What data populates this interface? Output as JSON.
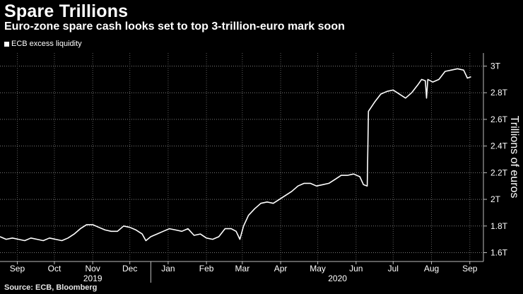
{
  "header": {
    "title": "Spare Trillions",
    "subtitle": "Euro-zone spare cash looks set to top 3-trillion-euro mark soon"
  },
  "source": "Source: ECB, Bloomberg",
  "chart_data": {
    "type": "line",
    "title": "Spare Trillions",
    "subtitle": "Euro-zone spare cash looks set to top 3-trillion-euro mark soon",
    "xlabel": "",
    "ylabel": "Trillions of euros",
    "ylim": [
      1.6,
      3.0
    ],
    "yticks": [
      {
        "value": 1.6,
        "label": "1.6T"
      },
      {
        "value": 1.8,
        "label": "1.8T"
      },
      {
        "value": 2.0,
        "label": "2T"
      },
      {
        "value": 2.2,
        "label": "2.2T"
      },
      {
        "value": 2.4,
        "label": "2.4T"
      },
      {
        "value": 2.6,
        "label": "2.6T"
      },
      {
        "value": 2.8,
        "label": "2.8T"
      },
      {
        "value": 3.0,
        "label": "3T"
      }
    ],
    "x_range": [
      "2019-09-01",
      "2020-09-26"
    ],
    "month_ticks": [
      {
        "date": "2019-09-15",
        "label": "Sep"
      },
      {
        "date": "2019-10-15",
        "label": "Oct"
      },
      {
        "date": "2019-11-15",
        "label": "Nov"
      },
      {
        "date": "2019-12-15",
        "label": "Dec"
      },
      {
        "date": "2020-01-15",
        "label": "Jan"
      },
      {
        "date": "2020-02-15",
        "label": "Feb"
      },
      {
        "date": "2020-03-15",
        "label": "Mar"
      },
      {
        "date": "2020-04-15",
        "label": "Apr"
      },
      {
        "date": "2020-05-15",
        "label": "May"
      },
      {
        "date": "2020-06-15",
        "label": "Jun"
      },
      {
        "date": "2020-07-15",
        "label": "Jul"
      },
      {
        "date": "2020-08-15",
        "label": "Aug"
      },
      {
        "date": "2020-09-15",
        "label": "Sep"
      }
    ],
    "year_labels": [
      {
        "date": "2019-11-15",
        "label": "2019"
      },
      {
        "date": "2020-05-31",
        "label": "2020"
      }
    ],
    "year_divider": "2020-01-01",
    "grid": true,
    "legend": "top-left",
    "series": [
      {
        "name": "ECB excess liquidity",
        "color": "#ffffff",
        "points": [
          [
            "2019-09-01",
            1.72
          ],
          [
            "2019-09-06",
            1.7
          ],
          [
            "2019-09-11",
            1.71
          ],
          [
            "2019-09-16",
            1.7
          ],
          [
            "2019-09-21",
            1.69
          ],
          [
            "2019-09-26",
            1.71
          ],
          [
            "2019-10-01",
            1.7
          ],
          [
            "2019-10-06",
            1.69
          ],
          [
            "2019-10-11",
            1.71
          ],
          [
            "2019-10-16",
            1.7
          ],
          [
            "2019-10-21",
            1.69
          ],
          [
            "2019-10-26",
            1.71
          ],
          [
            "2019-10-31",
            1.74
          ],
          [
            "2019-11-05",
            1.78
          ],
          [
            "2019-11-10",
            1.81
          ],
          [
            "2019-11-15",
            1.81
          ],
          [
            "2019-11-20",
            1.79
          ],
          [
            "2019-11-25",
            1.77
          ],
          [
            "2019-11-30",
            1.76
          ],
          [
            "2019-12-05",
            1.76
          ],
          [
            "2019-12-10",
            1.8
          ],
          [
            "2019-12-15",
            1.79
          ],
          [
            "2019-12-20",
            1.77
          ],
          [
            "2019-12-25",
            1.74
          ],
          [
            "2019-12-28",
            1.69
          ],
          [
            "2020-01-01",
            1.72
          ],
          [
            "2020-01-06",
            1.74
          ],
          [
            "2020-01-11",
            1.76
          ],
          [
            "2020-01-16",
            1.78
          ],
          [
            "2020-01-21",
            1.77
          ],
          [
            "2020-01-26",
            1.76
          ],
          [
            "2020-01-31",
            1.78
          ],
          [
            "2020-02-05",
            1.73
          ],
          [
            "2020-02-10",
            1.74
          ],
          [
            "2020-02-15",
            1.71
          ],
          [
            "2020-02-20",
            1.7
          ],
          [
            "2020-02-25",
            1.72
          ],
          [
            "2020-03-01",
            1.78
          ],
          [
            "2020-03-06",
            1.78
          ],
          [
            "2020-03-10",
            1.76
          ],
          [
            "2020-03-13",
            1.7
          ],
          [
            "2020-03-16",
            1.8
          ],
          [
            "2020-03-20",
            1.88
          ],
          [
            "2020-03-25",
            1.93
          ],
          [
            "2020-03-30",
            1.97
          ],
          [
            "2020-04-04",
            1.98
          ],
          [
            "2020-04-09",
            1.97
          ],
          [
            "2020-04-14",
            2.0
          ],
          [
            "2020-04-19",
            2.03
          ],
          [
            "2020-04-24",
            2.06
          ],
          [
            "2020-04-29",
            2.1
          ],
          [
            "2020-05-04",
            2.12
          ],
          [
            "2020-05-09",
            2.12
          ],
          [
            "2020-05-14",
            2.1
          ],
          [
            "2020-05-19",
            2.11
          ],
          [
            "2020-05-24",
            2.12
          ],
          [
            "2020-05-29",
            2.15
          ],
          [
            "2020-06-03",
            2.18
          ],
          [
            "2020-06-08",
            2.18
          ],
          [
            "2020-06-13",
            2.19
          ],
          [
            "2020-06-18",
            2.17
          ],
          [
            "2020-06-21",
            2.11
          ],
          [
            "2020-06-24",
            2.1
          ],
          [
            "2020-06-25",
            2.66
          ],
          [
            "2020-06-30",
            2.73
          ],
          [
            "2020-07-05",
            2.79
          ],
          [
            "2020-07-10",
            2.81
          ],
          [
            "2020-07-15",
            2.82
          ],
          [
            "2020-07-20",
            2.79
          ],
          [
            "2020-07-25",
            2.76
          ],
          [
            "2020-07-30",
            2.8
          ],
          [
            "2020-08-04",
            2.86
          ],
          [
            "2020-08-07",
            2.9
          ],
          [
            "2020-08-10",
            2.89
          ],
          [
            "2020-08-11",
            2.76
          ],
          [
            "2020-08-12",
            2.9
          ],
          [
            "2020-08-16",
            2.88
          ],
          [
            "2020-08-21",
            2.9
          ],
          [
            "2020-08-26",
            2.96
          ],
          [
            "2020-08-31",
            2.97
          ],
          [
            "2020-09-05",
            2.98
          ],
          [
            "2020-09-10",
            2.97
          ],
          [
            "2020-09-13",
            2.91
          ],
          [
            "2020-09-16",
            2.92
          ]
        ]
      }
    ]
  }
}
